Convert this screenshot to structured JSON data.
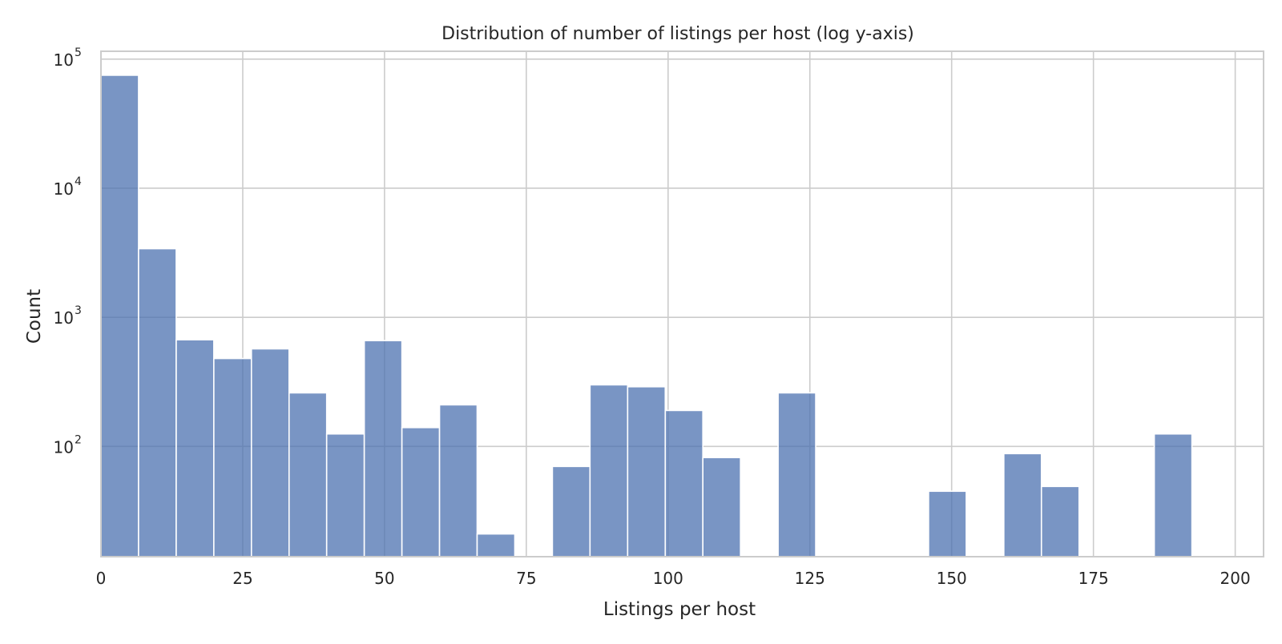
{
  "chart_data": {
    "type": "bar",
    "title": "Distribution of number of listings per host (log y-axis)",
    "xlabel": "Listings per host",
    "ylabel": "Count",
    "y_scale": "log",
    "xlim": [
      0,
      205
    ],
    "ylim": [
      14,
      115000
    ],
    "x_ticks": [
      0,
      25,
      50,
      75,
      100,
      125,
      150,
      175,
      200
    ],
    "x_tick_labels": [
      "0",
      "25",
      "50",
      "75",
      "100",
      "125",
      "150",
      "175",
      "200"
    ],
    "y_ticks": [
      {
        "base": "10",
        "exp": "2"
      },
      {
        "base": "10",
        "exp": "3"
      },
      {
        "base": "10",
        "exp": "4"
      },
      {
        "base": "10",
        "exp": "5"
      }
    ],
    "grid": true,
    "bar_color": "#4c72b0",
    "bins": [
      {
        "x0": 0,
        "x1": 6.63,
        "count": 75000
      },
      {
        "x0": 6.63,
        "x1": 13.27,
        "count": 3400
      },
      {
        "x0": 13.27,
        "x1": 19.9,
        "count": 670
      },
      {
        "x0": 19.9,
        "x1": 26.53,
        "count": 480
      },
      {
        "x0": 26.53,
        "x1": 33.17,
        "count": 570
      },
      {
        "x0": 33.17,
        "x1": 39.8,
        "count": 260
      },
      {
        "x0": 39.8,
        "x1": 46.43,
        "count": 125
      },
      {
        "x0": 46.43,
        "x1": 53.07,
        "count": 660
      },
      {
        "x0": 53.07,
        "x1": 59.7,
        "count": 140
      },
      {
        "x0": 59.7,
        "x1": 66.33,
        "count": 210
      },
      {
        "x0": 66.33,
        "x1": 72.97,
        "count": 21
      },
      {
        "x0": 79.6,
        "x1": 86.23,
        "count": 70
      },
      {
        "x0": 86.23,
        "x1": 92.87,
        "count": 300
      },
      {
        "x0": 92.87,
        "x1": 99.5,
        "count": 290
      },
      {
        "x0": 99.5,
        "x1": 106.13,
        "count": 190
      },
      {
        "x0": 106.13,
        "x1": 112.77,
        "count": 82
      },
      {
        "x0": 119.4,
        "x1": 126.03,
        "count": 260
      },
      {
        "x0": 145.93,
        "x1": 152.57,
        "count": 45
      },
      {
        "x0": 159.2,
        "x1": 165.83,
        "count": 88
      },
      {
        "x0": 165.83,
        "x1": 172.47,
        "count": 49
      },
      {
        "x0": 185.73,
        "x1": 192.37,
        "count": 125
      }
    ]
  }
}
